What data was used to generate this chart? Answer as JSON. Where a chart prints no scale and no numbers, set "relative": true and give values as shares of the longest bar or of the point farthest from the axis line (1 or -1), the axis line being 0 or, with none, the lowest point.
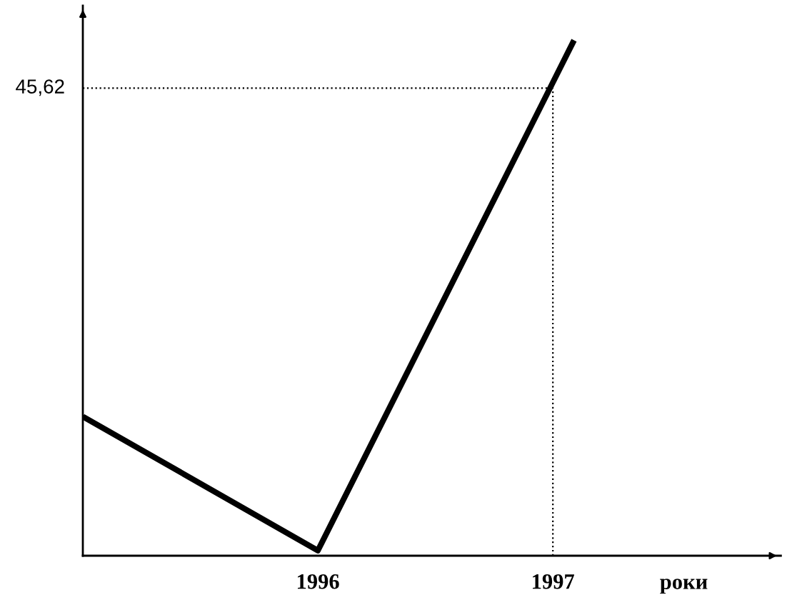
{
  "chart_data": {
    "type": "line",
    "xlabel": "роки",
    "x": [
      1995,
      1996,
      1997.09
    ],
    "series": [
      {
        "color": "#000000",
        "values": [
          0.27,
          0.01,
          1
        ]
      }
    ],
    "relative": true,
    "xlim": [
      1995,
      1997.97
    ],
    "xticks": [
      1996,
      1997
    ],
    "line_style": "solid",
    "ref_lines": [
      {
        "axis": "y",
        "value": 0.907,
        "line_style": "dotted",
        "color": "#000000"
      },
      {
        "axis": "x",
        "value": 1997,
        "line_style": "dotted",
        "color": "#000000"
      }
    ],
    "annotations": [
      "45,62"
    ]
  }
}
